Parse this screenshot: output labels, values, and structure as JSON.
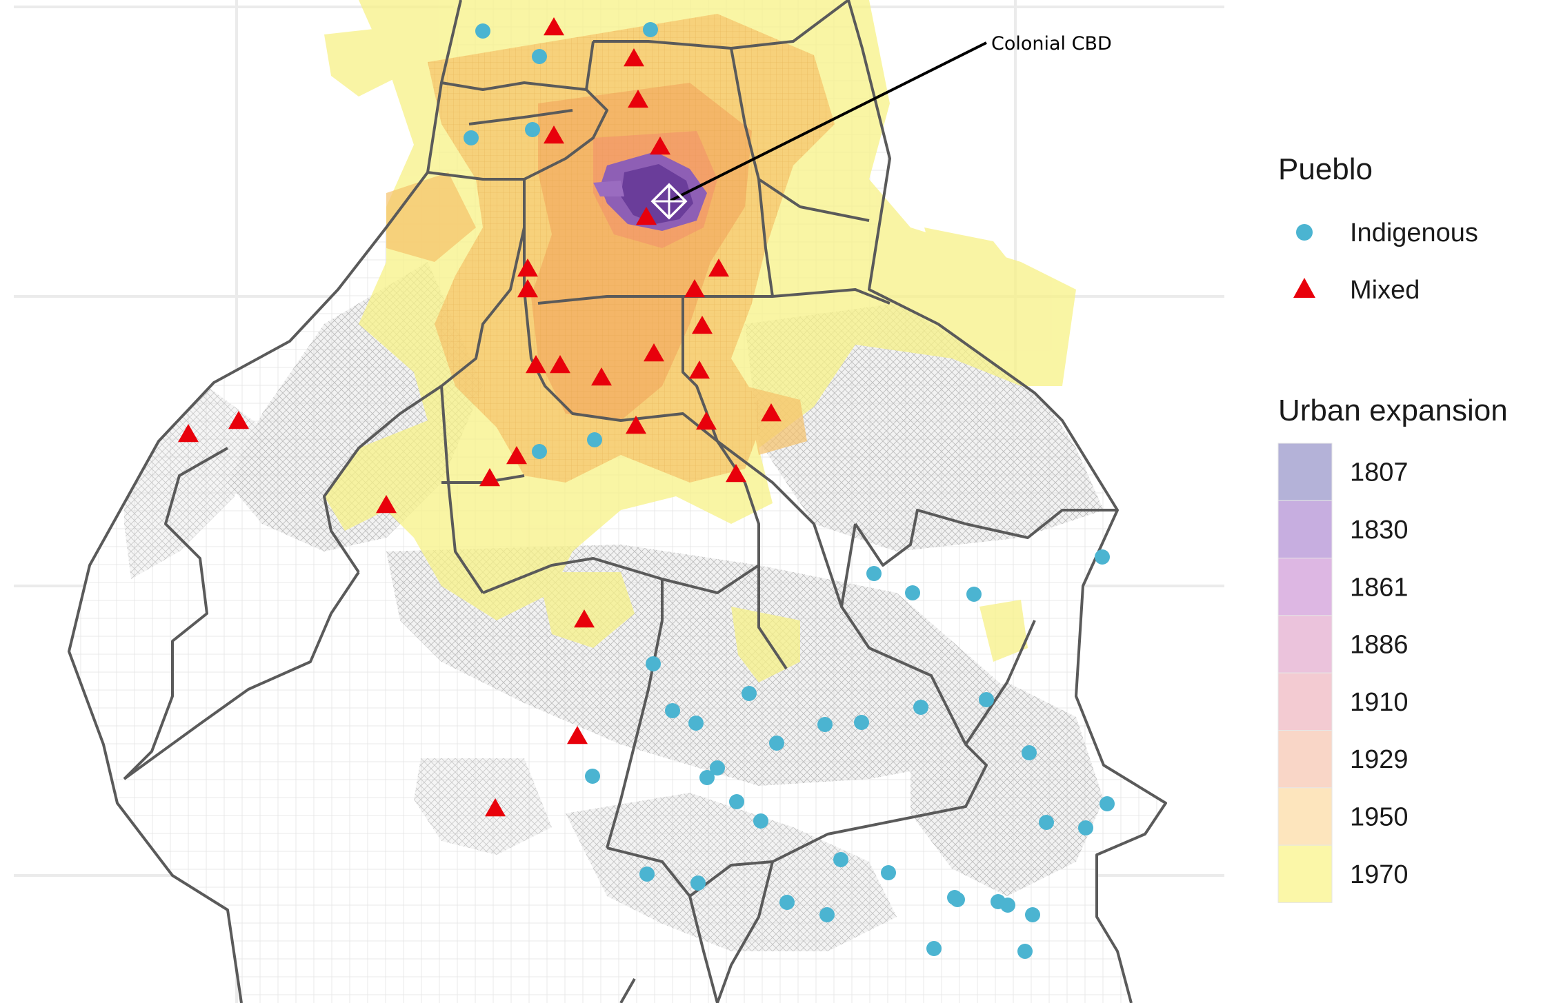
{
  "annotation": {
    "label": "Colonial CBD"
  },
  "colors": {
    "indigenous": "#4bb4d1",
    "mixed": "#e8000b",
    "border": "#555555",
    "grid": "#ebebeb",
    "streets": "#bdbdbd",
    "delegation_outline": "#6b6b6b"
  },
  "legend": {
    "pueblo": {
      "title": "Pueblo",
      "items": [
        {
          "label": "Indigenous",
          "shape": "circle",
          "color": "#4bb4d1"
        },
        {
          "label": "Mixed",
          "shape": "triangle",
          "color": "#e8000b"
        }
      ]
    },
    "urban_expansion": {
      "title": "Urban expansion",
      "items": [
        {
          "year": "1807",
          "color": "#b4b2d8"
        },
        {
          "year": "1830",
          "color": "#c7aee0"
        },
        {
          "year": "1861",
          "color": "#ddb7e3"
        },
        {
          "year": "1886",
          "color": "#ebc3dc"
        },
        {
          "year": "1910",
          "color": "#f3cbd2"
        },
        {
          "year": "1929",
          "color": "#f9d6c7"
        },
        {
          "year": "1950",
          "color": "#fde5bd"
        },
        {
          "year": "1970",
          "color": "#fbf7a8"
        }
      ]
    }
  },
  "pueblos": {
    "mixed": [
      [
        803,
        40
      ],
      [
        919,
        85
      ],
      [
        925,
        145
      ],
      [
        803,
        197
      ],
      [
        957,
        213
      ],
      [
        937,
        315
      ],
      [
        765,
        390
      ],
      [
        765,
        420
      ],
      [
        1042,
        390
      ],
      [
        1007,
        420
      ],
      [
        1018,
        473
      ],
      [
        948,
        513
      ],
      [
        777,
        530
      ],
      [
        812,
        530
      ],
      [
        872,
        548
      ],
      [
        1014,
        538
      ],
      [
        1118,
        600
      ],
      [
        1024,
        612
      ],
      [
        922,
        618
      ],
      [
        749,
        662
      ],
      [
        710,
        694
      ],
      [
        560,
        733
      ],
      [
        346,
        611
      ],
      [
        273,
        630
      ],
      [
        847,
        899
      ],
      [
        837,
        1068
      ],
      [
        718,
        1173
      ],
      [
        1067,
        688
      ]
    ],
    "indigenous": [
      [
        700,
        45
      ],
      [
        782,
        82
      ],
      [
        943,
        43
      ],
      [
        683,
        200
      ],
      [
        772,
        188
      ],
      [
        782,
        655
      ],
      [
        862,
        638
      ],
      [
        1598,
        808
      ],
      [
        1267,
        832
      ],
      [
        1323,
        860
      ],
      [
        1412,
        862
      ],
      [
        947,
        963
      ],
      [
        1086,
        1006
      ],
      [
        975,
        1031
      ],
      [
        1009,
        1049
      ],
      [
        1126,
        1078
      ],
      [
        1196,
        1051
      ],
      [
        1249,
        1048
      ],
      [
        1335,
        1026
      ],
      [
        1430,
        1015
      ],
      [
        1492,
        1092
      ],
      [
        1040,
        1114
      ],
      [
        1025,
        1128
      ],
      [
        859,
        1126
      ],
      [
        1068,
        1163
      ],
      [
        1103,
        1191
      ],
      [
        1219,
        1247
      ],
      [
        1288,
        1266
      ],
      [
        1517,
        1193
      ],
      [
        1605,
        1166
      ],
      [
        1574,
        1201
      ],
      [
        1388,
        1305
      ],
      [
        1141,
        1309
      ],
      [
        1199,
        1327
      ],
      [
        938,
        1268
      ],
      [
        1012,
        1281
      ],
      [
        1384,
        1302
      ],
      [
        1447,
        1308
      ],
      [
        1461,
        1313
      ],
      [
        1497,
        1327
      ],
      [
        1354,
        1376
      ],
      [
        1486,
        1380
      ]
    ]
  }
}
